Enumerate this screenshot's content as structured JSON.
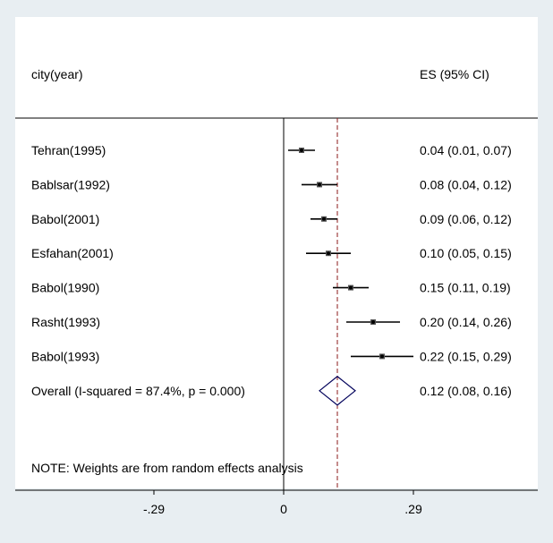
{
  "chart_data": {
    "type": "forest",
    "column_headers": {
      "study": "city(year)",
      "effect": "ES (95% CI)"
    },
    "studies": [
      {
        "label": "Tehran(1995)",
        "es": 0.04,
        "lo": 0.01,
        "hi": 0.07,
        "text": "0.04 (0.01, 0.07)"
      },
      {
        "label": "Bablsar(1992)",
        "es": 0.08,
        "lo": 0.04,
        "hi": 0.12,
        "text": "0.08 (0.04, 0.12)"
      },
      {
        "label": "Babol(2001)",
        "es": 0.09,
        "lo": 0.06,
        "hi": 0.12,
        "text": "0.09 (0.06, 0.12)"
      },
      {
        "label": "Esfahan(2001)",
        "es": 0.1,
        "lo": 0.05,
        "hi": 0.15,
        "text": "0.10 (0.05, 0.15)"
      },
      {
        "label": "Babol(1990)",
        "es": 0.15,
        "lo": 0.11,
        "hi": 0.19,
        "text": "0.15 (0.11, 0.19)"
      },
      {
        "label": "Rasht(1993)",
        "es": 0.2,
        "lo": 0.14,
        "hi": 0.26,
        "text": "0.20 (0.14, 0.26)"
      },
      {
        "label": "Babol(1993)",
        "es": 0.22,
        "lo": 0.15,
        "hi": 0.29,
        "text": "0.22 (0.15, 0.29)"
      }
    ],
    "overall": {
      "label": "Overall  (I-squared = 87.4%, p = 0.000)",
      "es": 0.12,
      "lo": 0.08,
      "hi": 0.16,
      "text": "0.12 (0.08, 0.16)"
    },
    "note": "NOTE: Weights are from random effects analysis",
    "x_ticks": [
      {
        "value": -0.29,
        "label": "-.29"
      },
      {
        "value": 0,
        "label": "0"
      },
      {
        "value": 0.29,
        "label": ".29"
      }
    ],
    "colors": {
      "background": "#e8eef2",
      "panel": "#ffffff",
      "overall_line": "#8b1a1a",
      "diamond": "#00005a",
      "text": "#000000"
    }
  }
}
